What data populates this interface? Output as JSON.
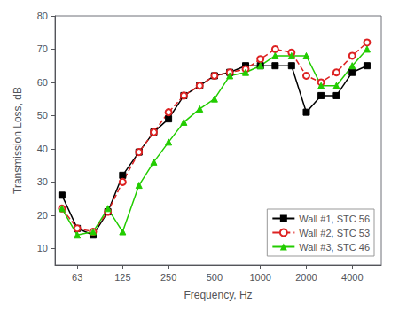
{
  "chart_data": {
    "type": "line",
    "xlabel": "Frequency, Hz",
    "ylabel": "Transmission Loss, dB",
    "x": [
      50,
      63,
      80,
      100,
      125,
      160,
      200,
      250,
      315,
      400,
      500,
      630,
      800,
      1000,
      1250,
      1600,
      2000,
      2500,
      3150,
      4000,
      5000
    ],
    "series": [
      {
        "name": "Wall #1, STC 56",
        "color": "#000000",
        "marker": "square",
        "line_style": "solid",
        "values": [
          26,
          16,
          14,
          21,
          32,
          39,
          45,
          49,
          56,
          59,
          62,
          63,
          65,
          65,
          65,
          65,
          51,
          56,
          56,
          63,
          65
        ]
      },
      {
        "name": "Wall #2, STC 53",
        "color": "#dd2222",
        "marker": "hollow_circle",
        "line_style": "dashed",
        "values": [
          22,
          16,
          15,
          21,
          30,
          39,
          45,
          51,
          56,
          59,
          62,
          63,
          64,
          67,
          70,
          69,
          62,
          60,
          63,
          68,
          72
        ]
      },
      {
        "name": "Wall #3, STC 46",
        "color": "#22cc00",
        "marker": "triangle",
        "line_style": "solid",
        "values": [
          22,
          14,
          15,
          22,
          15,
          29,
          36,
          42,
          48,
          52,
          55,
          62,
          63,
          65,
          68,
          68,
          68,
          59,
          59,
          65,
          70
        ]
      }
    ],
    "log": "x",
    "xlim": [
      45,
      6200
    ],
    "xticks": [
      63,
      125,
      250,
      500,
      1000,
      2000,
      4000
    ],
    "ylim": [
      5,
      80
    ],
    "yticks": [
      10,
      20,
      30,
      40,
      50,
      60,
      70,
      80
    ],
    "grid": false,
    "legend": "lower right"
  }
}
